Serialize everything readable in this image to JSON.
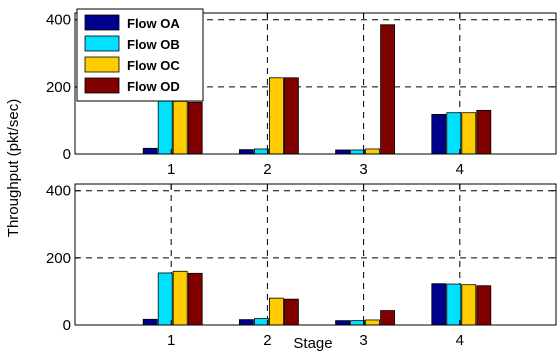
{
  "chart_data": [
    {
      "type": "bar",
      "categories": [
        "1",
        "2",
        "3",
        "4"
      ],
      "yticks": [
        "0",
        "200",
        "400"
      ],
      "ylim": [
        0,
        420
      ],
      "grid": true,
      "legend_position": "top-left",
      "series": [
        {
          "name": "Flow OA",
          "color": "#00008f",
          "values": [
            17,
            13,
            12,
            118
          ]
        },
        {
          "name": "Flow OB",
          "color": "#00e0ff",
          "values": [
            162,
            15,
            12,
            123
          ]
        },
        {
          "name": "Flow OC",
          "color": "#ffcc00",
          "values": [
            157,
            227,
            15,
            123
          ]
        },
        {
          "name": "Flow OD",
          "color": "#800000",
          "values": [
            154,
            227,
            385,
            130
          ]
        }
      ]
    },
    {
      "type": "bar",
      "categories": [
        "1",
        "2",
        "3",
        "4"
      ],
      "yticks": [
        "0",
        "200",
        "400"
      ],
      "ylim": [
        0,
        420
      ],
      "grid": true,
      "series": [
        {
          "name": "Flow OA",
          "color": "#00008f",
          "values": [
            17,
            16,
            13,
            123
          ]
        },
        {
          "name": "Flow OB",
          "color": "#00e0ff",
          "values": [
            155,
            19,
            13,
            122
          ]
        },
        {
          "name": "Flow OC",
          "color": "#ffcc00",
          "values": [
            160,
            80,
            15,
            120
          ]
        },
        {
          "name": "Flow OD",
          "color": "#800000",
          "values": [
            154,
            77,
            43,
            117
          ]
        }
      ]
    }
  ],
  "ylabel": "Throughput (pkt/sec)",
  "xlabel": "Stage"
}
